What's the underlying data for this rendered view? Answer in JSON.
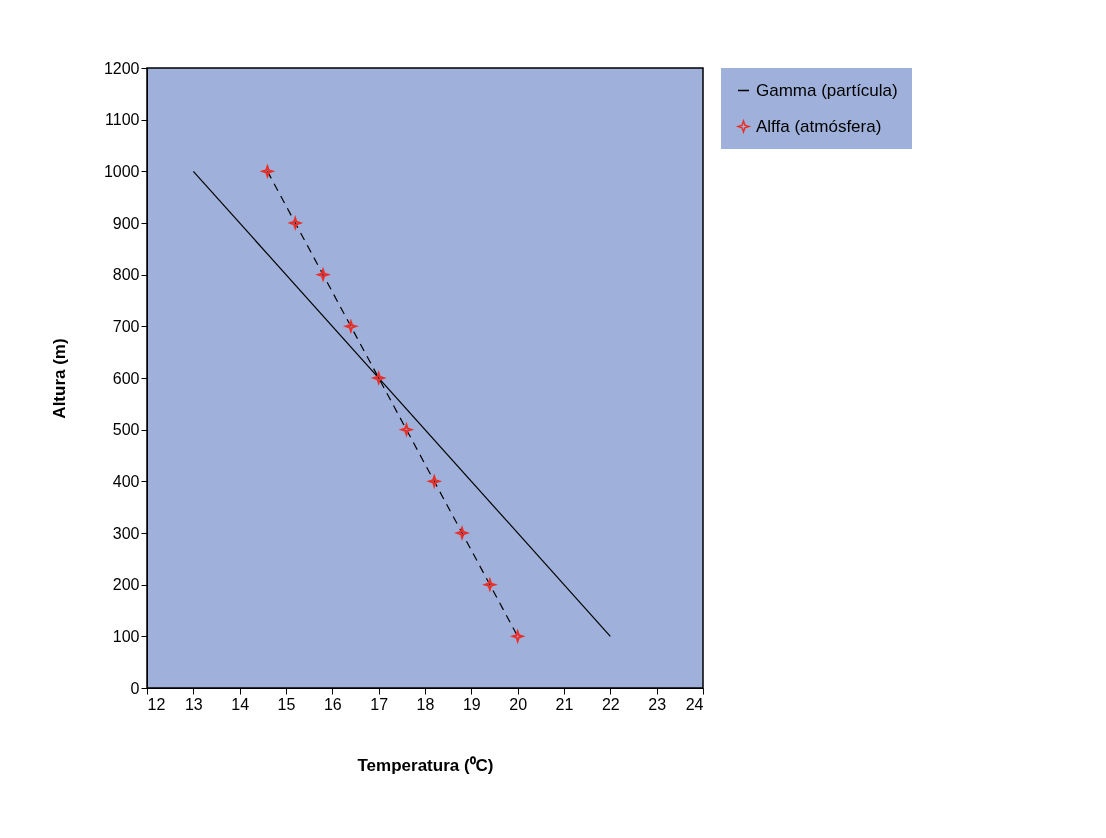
{
  "chart_data": {
    "type": "line",
    "xlabel": "Temperatura (⁰C)",
    "ylabel": "Altura (m)",
    "xlim": [
      12,
      24
    ],
    "xticks": [
      12,
      13,
      14,
      15,
      16,
      17,
      18,
      19,
      20,
      21,
      22,
      23,
      24
    ],
    "ylim": [
      0,
      1200
    ],
    "yticks": [
      0,
      100,
      200,
      300,
      400,
      500,
      600,
      700,
      800,
      900,
      1000,
      1100,
      1200
    ],
    "grid": false,
    "legend": "top right",
    "series": [
      {
        "name": "Gamma (partícula)",
        "type": "line",
        "color": "#000000",
        "line_style": "solid",
        "marker": "none",
        "x": [
          13,
          22
        ],
        "values": [
          1000,
          100
        ]
      },
      {
        "type": "line",
        "color": "#000000",
        "line_style": "dashed",
        "marker": "none",
        "x": [
          14.6,
          15.2,
          15.8,
          16.4,
          17.0,
          17.6,
          18.2,
          18.8,
          19.4,
          20.0
        ],
        "values": [
          1000,
          900,
          800,
          700,
          600,
          500,
          400,
          300,
          200,
          100
        ]
      },
      {
        "name": "Alffa (atmósfera)",
        "type": "scatter",
        "color": "#e8302a",
        "marker": "star",
        "x": [
          14.6,
          15.2,
          15.8,
          16.4,
          17.0,
          17.6,
          18.2,
          18.8,
          19.4,
          20.0
        ],
        "values": [
          1000,
          900,
          800,
          700,
          600,
          500,
          400,
          300,
          200,
          100
        ]
      }
    ]
  }
}
